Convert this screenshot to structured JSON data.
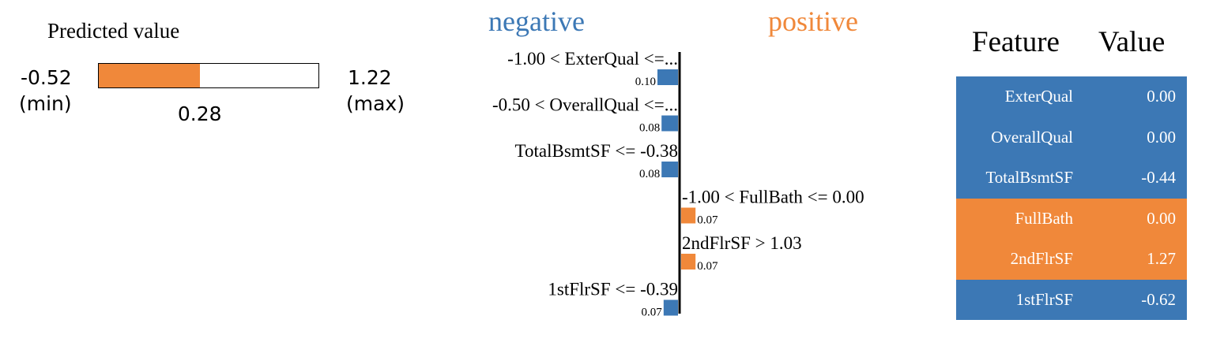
{
  "predicted": {
    "title": "Predicted value",
    "min": -0.52,
    "min_text": "-0.52",
    "min_label": "(min)",
    "max": 1.22,
    "max_text": "1.22",
    "max_label": "(max)",
    "value": 0.28,
    "value_text": "0.28",
    "colors": {
      "fill": "#f0883a"
    }
  },
  "chart_data": {
    "type": "bar",
    "orientation": "horizontal",
    "headers": {
      "negative": "negative",
      "positive": "positive"
    },
    "colors": {
      "negative": "#3c78b5",
      "positive": "#f0883a"
    },
    "categories": [
      "-1.00 < ExterQual <=...",
      "-0.50 < OverallQual <=...",
      "TotalBsmtSF <= -0.38",
      "-1.00 < FullBath <= 0.00",
      "2ndFlrSF > 1.03",
      "1stFlrSF <= -0.39"
    ],
    "values": [
      -0.1,
      -0.08,
      -0.08,
      0.07,
      0.07,
      -0.07
    ],
    "value_labels": [
      "0.10",
      "0.08",
      "0.08",
      "0.07",
      "0.07",
      "0.07"
    ],
    "xlim": [
      -0.1,
      0.1
    ]
  },
  "feature_table": {
    "header_feature": "Feature",
    "header_value": "Value",
    "rows": [
      {
        "feature": "ExterQual",
        "value": "0.00",
        "sign": "neg"
      },
      {
        "feature": "OverallQual",
        "value": "0.00",
        "sign": "neg"
      },
      {
        "feature": "TotalBsmtSF",
        "value": "-0.44",
        "sign": "neg"
      },
      {
        "feature": "FullBath",
        "value": "0.00",
        "sign": "pos"
      },
      {
        "feature": "2ndFlrSF",
        "value": "1.27",
        "sign": "pos"
      },
      {
        "feature": "1stFlrSF",
        "value": "-0.62",
        "sign": "neg"
      }
    ],
    "colors": {
      "neg": "#3c78b5",
      "pos": "#f0883a"
    }
  }
}
